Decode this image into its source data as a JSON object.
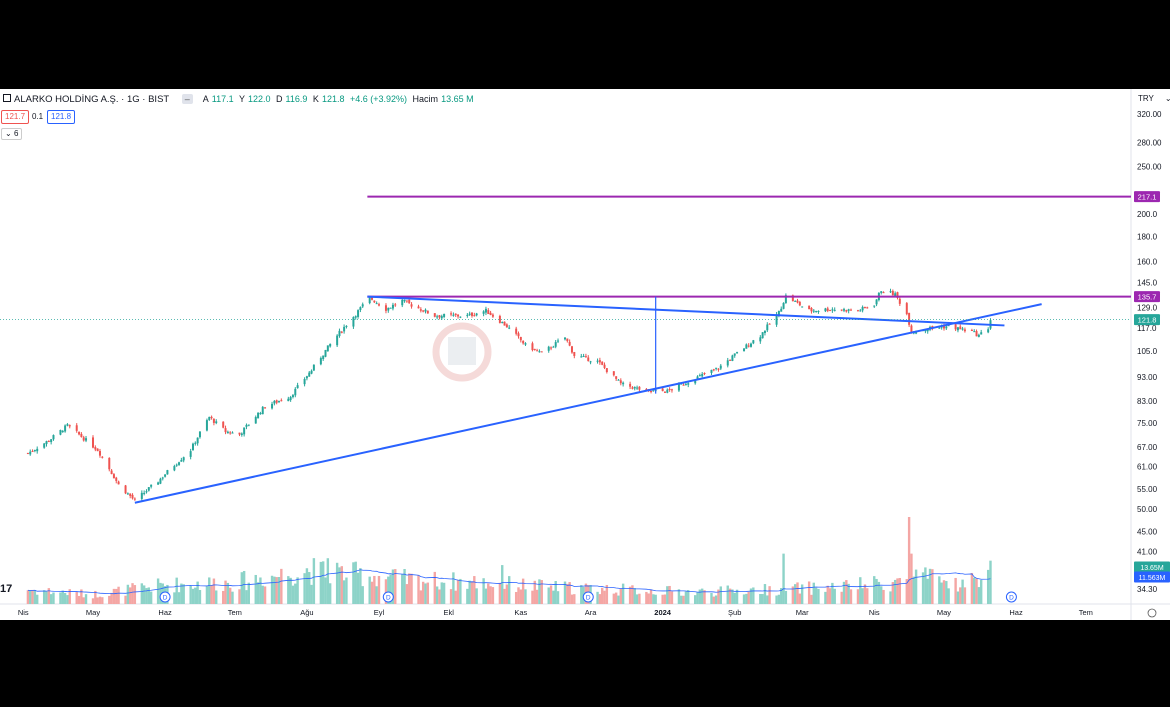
{
  "header": {
    "symbol": "ALARKO HOLDİNG A.Ş. · 1G · BIST",
    "o_label": "A",
    "o": "117.1",
    "h_label": "Y",
    "h": "122.0",
    "l_label": "D",
    "l": "116.9",
    "c_label": "K",
    "c": "121.8",
    "change": "+4.6 (+3.92%)",
    "vol_label": "Hacim",
    "vol": "13.65 M",
    "currency": "TRY"
  },
  "trade": {
    "bid": "121.7",
    "spread": "0.1",
    "ask": "121.8"
  },
  "indicators_toggle": "6",
  "colors": {
    "up": "#26a69a",
    "down": "#ef5350",
    "up_vol": "#8dd3c8",
    "down_vol": "#f4a6a4",
    "trend": "#2962ff",
    "level": "#9c27b0",
    "vol_ma": "#2962ff"
  },
  "chart_data": {
    "type": "candlestick",
    "y_scale": "log",
    "ylim": [
      32,
      360
    ],
    "y_ticks": [
      "320.00",
      "280.00",
      "250.00",
      "200.0",
      "180.0",
      "160.0",
      "145.0",
      "129.0",
      "117.0",
      "105.0",
      "93.00",
      "83.00",
      "75.00",
      "67.00",
      "61.00",
      "55.00",
      "50.00",
      "45.00",
      "41.00",
      "34.30"
    ],
    "y_tick_values": [
      320,
      280,
      250,
      200,
      180,
      160,
      145,
      129,
      117,
      105,
      93,
      83,
      75,
      67,
      61,
      55,
      50,
      45,
      41,
      34.3
    ],
    "x_ticks": [
      "Nis",
      "May",
      "Haz",
      "Tem",
      "Ağu",
      "Eyl",
      "Ekl",
      "Kas",
      "Ara",
      "2024",
      "Şub",
      "Mar",
      "Nis",
      "May",
      "Haz",
      "Tem"
    ],
    "x_tick_dates": [
      "2023-04-01",
      "2023-05-01",
      "2023-06-01",
      "2023-07-01",
      "2023-08-01",
      "2023-09-01",
      "2023-10-01",
      "2023-11-01",
      "2023-12-01",
      "2024-01-01",
      "2024-02-01",
      "2024-03-01",
      "2024-04-01",
      "2024-05-01",
      "2024-06-01",
      "2024-07-01"
    ],
    "close_keypoints": [
      [
        "2023-04-03",
        65
      ],
      [
        "2023-04-12",
        69
      ],
      [
        "2023-04-20",
        74
      ],
      [
        "2023-05-03",
        66
      ],
      [
        "2023-05-12",
        56
      ],
      [
        "2023-05-19",
        52
      ],
      [
        "2023-05-29",
        57
      ],
      [
        "2023-06-12",
        66
      ],
      [
        "2023-06-20",
        77
      ],
      [
        "2023-06-27",
        72
      ],
      [
        "2023-07-03",
        71
      ],
      [
        "2023-07-14",
        81
      ],
      [
        "2023-07-25",
        85
      ],
      [
        "2023-08-03",
        96
      ],
      [
        "2023-08-14",
        113
      ],
      [
        "2023-08-22",
        125
      ],
      [
        "2023-08-28",
        135
      ],
      [
        "2023-09-04",
        128
      ],
      [
        "2023-09-11",
        133
      ],
      [
        "2023-09-25",
        124
      ],
      [
        "2023-10-09",
        124
      ],
      [
        "2023-10-17",
        127
      ],
      [
        "2023-10-26",
        118
      ],
      [
        "2023-11-03",
        108
      ],
      [
        "2023-11-10",
        104
      ],
      [
        "2023-11-20",
        112
      ],
      [
        "2023-11-24",
        103
      ],
      [
        "2023-12-04",
        100
      ],
      [
        "2023-12-14",
        90
      ],
      [
        "2023-12-25",
        87
      ],
      [
        "2024-01-03",
        87
      ],
      [
        "2024-01-12",
        91
      ],
      [
        "2024-01-25",
        97
      ],
      [
        "2024-02-02",
        104
      ],
      [
        "2024-02-12",
        113
      ],
      [
        "2024-02-20",
        126
      ],
      [
        "2024-02-23",
        136
      ],
      [
        "2024-03-04",
        127
      ],
      [
        "2024-03-13",
        128
      ],
      [
        "2024-03-25",
        127
      ],
      [
        "2024-04-01",
        131
      ],
      [
        "2024-04-04",
        140
      ],
      [
        "2024-04-10",
        137
      ],
      [
        "2024-04-15",
        125
      ],
      [
        "2024-04-17",
        115
      ],
      [
        "2024-04-25",
        117
      ],
      [
        "2024-05-03",
        118
      ],
      [
        "2024-05-13",
        115
      ],
      [
        "2024-05-16",
        113
      ],
      [
        "2024-05-20",
        117.1
      ],
      [
        "2024-05-21",
        121.8
      ]
    ],
    "volume_keypoints": [
      [
        "2023-04-03",
        6
      ],
      [
        "2023-05-01",
        4
      ],
      [
        "2023-06-01",
        8
      ],
      [
        "2023-07-01",
        9
      ],
      [
        "2023-08-01",
        14
      ],
      [
        "2023-08-28",
        12
      ],
      [
        "2023-09-15",
        10
      ],
      [
        "2023-10-15",
        9
      ],
      [
        "2023-11-15",
        7
      ],
      [
        "2023-12-15",
        6
      ],
      [
        "2024-01-15",
        5
      ],
      [
        "2024-02-15",
        6
      ],
      [
        "2024-03-15",
        7
      ],
      [
        "2024-04-10",
        9
      ],
      [
        "2024-04-16",
        12
      ],
      [
        "2024-05-10",
        8
      ],
      [
        "2024-05-21",
        13.65
      ]
    ],
    "volume_spikes": [
      [
        "2024-04-16",
        38
      ],
      [
        "2024-04-17",
        22
      ],
      [
        "2024-02-22",
        22
      ],
      [
        "2023-08-10",
        20
      ],
      [
        "2023-08-14",
        18
      ],
      [
        "2023-10-24",
        17
      ]
    ],
    "volume_ylim": [
      0,
      38
    ],
    "volume_last": "13.65M",
    "volume_ma_last": "11.563M",
    "levels": [
      {
        "value": 217.1,
        "label": "217.1",
        "from": "2023-08-27"
      },
      {
        "value": 135.7,
        "label": "135.7",
        "from": "2023-08-27"
      }
    ],
    "last_price": {
      "value": 121.8,
      "label": "121.8"
    },
    "trendlines": [
      {
        "from": [
          "2023-05-19",
          51.5
        ],
        "to": [
          "2024-06-12",
          131
        ]
      },
      {
        "from": [
          "2023-08-27",
          135.7
        ],
        "to": [
          "2024-05-27",
          118.5
        ]
      },
      {
        "from": [
          "2023-12-29",
          135.7
        ],
        "to": [
          "2023-12-29",
          86
        ]
      }
    ],
    "dividends": [
      "2023-06-01",
      "2023-09-05",
      "2023-11-30",
      "2024-05-30"
    ],
    "dividend_label": "D"
  }
}
